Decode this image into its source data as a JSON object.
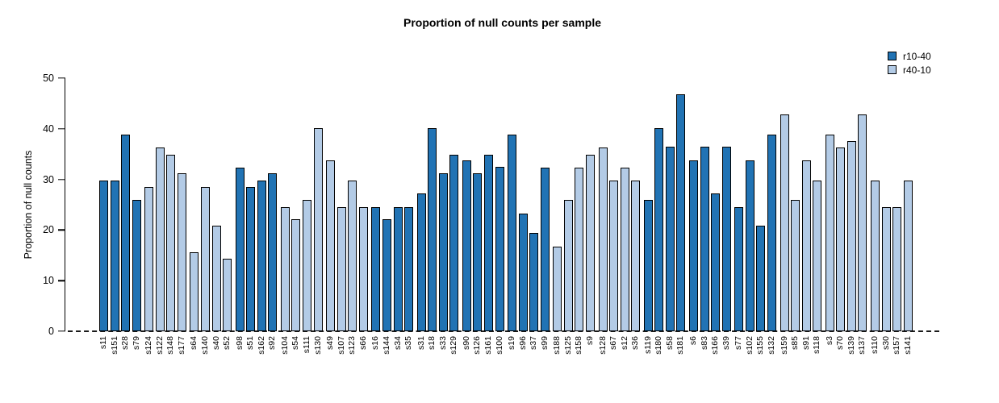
{
  "title": "Proportion of null counts per sample",
  "legend": {
    "items": [
      {
        "label": "r10-40",
        "color": "#2173B4"
      },
      {
        "label": "r40-10",
        "color": "#B3CBE6"
      }
    ]
  },
  "chart_data": {
    "type": "bar",
    "title": "Proportion of null counts per sample",
    "xlabel": "",
    "ylabel": "Proportion of null counts",
    "ylim": [
      0,
      50
    ],
    "yticks": [
      0,
      10,
      20,
      30,
      40,
      50
    ],
    "grid": false,
    "legend_position": "top-right",
    "baseline": {
      "y": 0,
      "style": "dashed"
    },
    "series_names": [
      "r10-40",
      "r40-10"
    ],
    "groups": [
      {
        "series": "r10-40",
        "bars": [
          {
            "label": "s11",
            "value": 29.8
          },
          {
            "label": "s151",
            "value": 29.8
          },
          {
            "label": "s28",
            "value": 38.9
          },
          {
            "label": "s79",
            "value": 25.9
          }
        ]
      },
      {
        "series": "r40-10",
        "bars": [
          {
            "label": "s124",
            "value": 28.5
          },
          {
            "label": "s122",
            "value": 36.3
          },
          {
            "label": "s148",
            "value": 34.9
          },
          {
            "label": "s177",
            "value": 31.2
          }
        ]
      },
      {
        "series": "r40-10",
        "bars": [
          {
            "label": "s64",
            "value": 15.6
          },
          {
            "label": "s140",
            "value": 28.5
          },
          {
            "label": "s40",
            "value": 20.8
          },
          {
            "label": "s52",
            "value": 14.3
          }
        ]
      },
      {
        "series": "r10-40",
        "bars": [
          {
            "label": "s98",
            "value": 32.4
          },
          {
            "label": "s51",
            "value": 28.5
          },
          {
            "label": "s162",
            "value": 29.8
          },
          {
            "label": "s92",
            "value": 31.2
          }
        ]
      },
      {
        "series": "r40-10",
        "bars": [
          {
            "label": "s104",
            "value": 24.6
          },
          {
            "label": "s54",
            "value": 22.1
          },
          {
            "label": "s111",
            "value": 25.9
          },
          {
            "label": "s130",
            "value": 40.1
          }
        ]
      },
      {
        "series": "r40-10",
        "bars": [
          {
            "label": "s49",
            "value": 33.7
          },
          {
            "label": "s107",
            "value": 24.6
          },
          {
            "label": "s123",
            "value": 29.8
          },
          {
            "label": "s66",
            "value": 24.6
          }
        ]
      },
      {
        "series": "r10-40",
        "bars": [
          {
            "label": "s16",
            "value": 24.6
          },
          {
            "label": "s144",
            "value": 22.1
          },
          {
            "label": "s34",
            "value": 24.6
          },
          {
            "label": "s35",
            "value": 24.6
          }
        ]
      },
      {
        "series": "r10-40",
        "bars": [
          {
            "label": "s31",
            "value": 27.3
          },
          {
            "label": "s18",
            "value": 40.1
          },
          {
            "label": "s33",
            "value": 31.2
          },
          {
            "label": "s129",
            "value": 34.9
          }
        ]
      },
      {
        "series": "r10-40",
        "bars": [
          {
            "label": "s90",
            "value": 33.7
          },
          {
            "label": "s126",
            "value": 31.2
          },
          {
            "label": "s161",
            "value": 34.9
          },
          {
            "label": "s100",
            "value": 32.5
          }
        ]
      },
      {
        "series": "r10-40",
        "bars": [
          {
            "label": "s19",
            "value": 38.9
          },
          {
            "label": "s96",
            "value": 23.2
          },
          {
            "label": "s37",
            "value": 19.5
          },
          {
            "label": "s99",
            "value": 32.4
          }
        ]
      },
      {
        "series": "r40-10",
        "bars": [
          {
            "label": "s188",
            "value": 16.8
          },
          {
            "label": "s125",
            "value": 25.9
          },
          {
            "label": "s158",
            "value": 32.4
          },
          {
            "label": "s9",
            "value": 34.9
          }
        ]
      },
      {
        "series": "r40-10",
        "bars": [
          {
            "label": "s128",
            "value": 36.3
          },
          {
            "label": "s67",
            "value": 29.7
          },
          {
            "label": "s12",
            "value": 32.4
          },
          {
            "label": "s36",
            "value": 29.7
          }
        ]
      },
      {
        "series": "r10-40",
        "bars": [
          {
            "label": "s119",
            "value": 25.9
          },
          {
            "label": "s180",
            "value": 40.2
          },
          {
            "label": "s58",
            "value": 36.4
          },
          {
            "label": "s181",
            "value": 46.8
          }
        ]
      },
      {
        "series": "r10-40",
        "bars": [
          {
            "label": "s6",
            "value": 33.8
          },
          {
            "label": "s83",
            "value": 36.4
          },
          {
            "label": "s166",
            "value": 27.3
          },
          {
            "label": "s39",
            "value": 36.4
          }
        ]
      },
      {
        "series": "r10-40",
        "bars": [
          {
            "label": "s77",
            "value": 24.6
          },
          {
            "label": "s102",
            "value": 33.7
          },
          {
            "label": "s155",
            "value": 20.8
          },
          {
            "label": "s132",
            "value": 38.9
          }
        ]
      },
      {
        "series": "r40-10",
        "bars": [
          {
            "label": "s159",
            "value": 42.8
          },
          {
            "label": "s85",
            "value": 25.9
          },
          {
            "label": "s91",
            "value": 33.7
          },
          {
            "label": "s118",
            "value": 29.7
          }
        ]
      },
      {
        "series": "r40-10",
        "bars": [
          {
            "label": "s3",
            "value": 38.9
          },
          {
            "label": "s70",
            "value": 36.3
          },
          {
            "label": "s139",
            "value": 37.6
          },
          {
            "label": "s137",
            "value": 42.8
          }
        ]
      },
      {
        "series": "r40-10",
        "bars": [
          {
            "label": "s110",
            "value": 29.7
          },
          {
            "label": "s30",
            "value": 24.6
          },
          {
            "label": "s157",
            "value": 24.6
          },
          {
            "label": "s141",
            "value": 29.7
          }
        ]
      }
    ]
  }
}
